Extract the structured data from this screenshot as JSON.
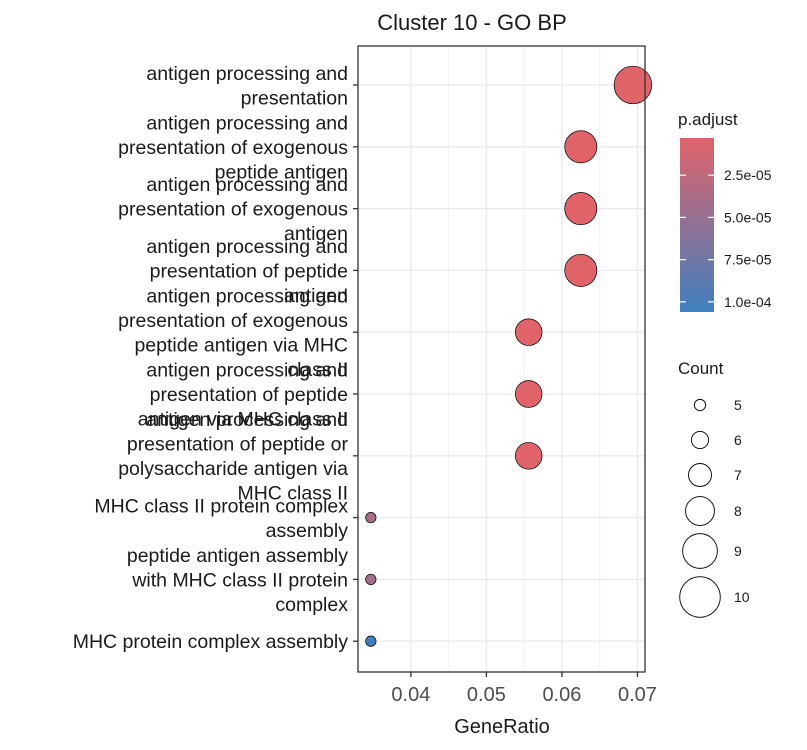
{
  "chart_data": {
    "type": "scatter",
    "title": "Cluster 10 - GO BP",
    "xlabel": "GeneRatio",
    "ylabel": "",
    "xlim": [
      0.033,
      0.071
    ],
    "x_ticks": [
      0.04,
      0.05,
      0.06,
      0.07
    ],
    "x_tick_labels": [
      "0.04",
      "0.05",
      "0.06",
      "0.07"
    ],
    "grid": true,
    "terms": [
      {
        "label": [
          "antigen processing and",
          "presentation"
        ],
        "gene_ratio": 0.0694,
        "count": 10,
        "p_adjust": 3e-06
      },
      {
        "label": [
          "antigen processing and",
          "presentation of exogenous",
          "peptide antigen"
        ],
        "gene_ratio": 0.0625,
        "count": 9,
        "p_adjust": 3e-06
      },
      {
        "label": [
          "antigen processing and",
          "presentation of exogenous",
          "antigen"
        ],
        "gene_ratio": 0.0625,
        "count": 9,
        "p_adjust": 3e-06
      },
      {
        "label": [
          "antigen processing and",
          "presentation of peptide",
          "antigen"
        ],
        "gene_ratio": 0.0625,
        "count": 9,
        "p_adjust": 3e-06
      },
      {
        "label": [
          "antigen processing and",
          "presentation of exogenous",
          "peptide antigen via MHC",
          "class II"
        ],
        "gene_ratio": 0.0556,
        "count": 8,
        "p_adjust": 3e-06
      },
      {
        "label": [
          "antigen processing and",
          "presentation of peptide",
          "antigen via MHC class II"
        ],
        "gene_ratio": 0.0556,
        "count": 8,
        "p_adjust": 3e-06
      },
      {
        "label": [
          "antigen processing and",
          "presentation of peptide or",
          "polysaccharide antigen via",
          "MHC class II"
        ],
        "gene_ratio": 0.0556,
        "count": 8,
        "p_adjust": 3e-06
      },
      {
        "label": [
          "MHC class II protein complex",
          "assembly"
        ],
        "gene_ratio": 0.0347,
        "count": 5,
        "p_adjust": 4e-05
      },
      {
        "label": [
          "peptide antigen assembly",
          "with MHC class II protein",
          "complex"
        ],
        "gene_ratio": 0.0347,
        "count": 5,
        "p_adjust": 4e-05
      },
      {
        "label": [
          "MHC protein complex assembly"
        ],
        "gene_ratio": 0.0347,
        "count": 5,
        "p_adjust": 0.000106
      }
    ],
    "color_legend": {
      "title": "p.adjust",
      "ticks": [
        2.5e-05,
        5e-05,
        7.5e-05,
        0.0001
      ],
      "tick_labels": [
        "2.5e-05",
        "5.0e-05",
        "7.5e-05",
        "1.0e-04"
      ],
      "range": [
        3e-06,
        0.000106
      ],
      "low_color": "#E0636A",
      "high_color": "#3F7FBF"
    },
    "size_legend": {
      "title": "Count",
      "values": [
        5,
        6,
        7,
        8,
        9,
        10
      ],
      "labels": [
        "5",
        "6",
        "7",
        "8",
        "9",
        "10"
      ]
    }
  }
}
